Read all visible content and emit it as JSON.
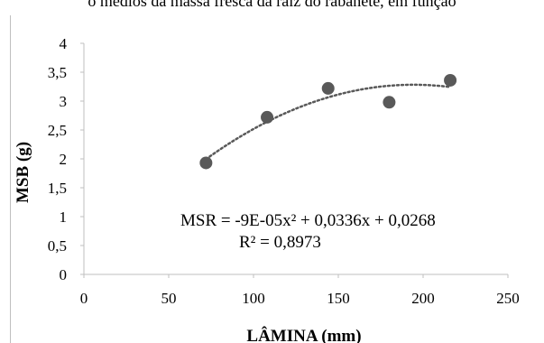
{
  "header": {
    "caption": "o médios da massa fresca da raiz do rabanete, em função"
  },
  "chart_data": {
    "type": "scatter",
    "title": "",
    "xlabel": "LÂMINA (mm)",
    "ylabel": "MSB (g)",
    "xlim": [
      0,
      250
    ],
    "ylim": [
      0,
      4
    ],
    "x_ticks": [
      "0",
      "50",
      "100",
      "150",
      "200",
      "250"
    ],
    "y_ticks": [
      "0",
      "0,5",
      "1",
      "1,5",
      "2",
      "2,5",
      "3",
      "3,5",
      "4"
    ],
    "x": [
      72,
      108,
      144,
      180,
      216
    ],
    "y": [
      1.93,
      2.72,
      3.22,
      2.98,
      3.36
    ],
    "trendline": {
      "type": "polynomial",
      "order": 2,
      "style": "dotted",
      "x_range": [
        72,
        216
      ]
    },
    "annotations": {
      "equation": "MSR = -9E-05x² + 0,0336x + 0,0268",
      "r_squared": "R² = 0,8973"
    },
    "grid": false,
    "legend": "none",
    "colors": {
      "marker": "#595959",
      "trendline": "#595959",
      "axis": "#bfbfbf"
    }
  }
}
